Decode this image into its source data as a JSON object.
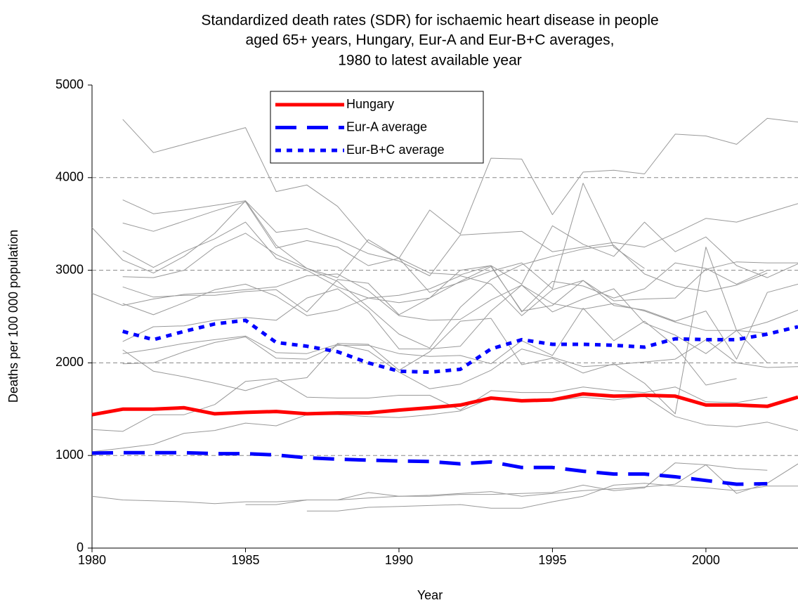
{
  "chart_data": {
    "type": "line",
    "title": [
      "Standardized death rates (SDR) for  ischaemic heart disease in people",
      "aged 65+ years, Hungary, Eur-A and Eur-B+C averages,",
      "1980 to latest available year"
    ],
    "x_label": "Year",
    "y_label": "Deaths per 100 000 population",
    "x": [
      1980,
      1981,
      1982,
      1983,
      1984,
      1985,
      1986,
      1987,
      1988,
      1989,
      1990,
      1991,
      1992,
      1993,
      1994,
      1995,
      1996,
      1997,
      1998,
      1999,
      2000,
      2001,
      2002,
      2003
    ],
    "xlim": [
      1980,
      2003
    ],
    "xticks": [
      1980,
      1985,
      1990,
      1995,
      2000
    ],
    "ylim": [
      0,
      5000
    ],
    "yticks": [
      0,
      1000,
      2000,
      3000,
      4000,
      5000
    ],
    "grid": true,
    "legend": "top-left",
    "series": [
      {
        "color": "#999999",
        "line_style": "solid",
        "line_width": 1,
        "values": [
          null,
          4630,
          4270,
          4360,
          4450,
          4540,
          3850,
          3920,
          3690,
          3300,
          3130,
          3650,
          3390,
          4210,
          4200,
          3600,
          4060,
          4080,
          4040,
          4470,
          4450,
          4360,
          4640,
          4600
        ]
      },
      {
        "color": "#999999",
        "line_style": "solid",
        "line_width": 1,
        "values": [
          null,
          3760,
          3610,
          3650,
          3700,
          3750,
          3410,
          3450,
          3330,
          3180,
          3100,
          2940,
          3380,
          3400,
          3420,
          3200,
          3250,
          3300,
          3250,
          3400,
          3560,
          3520,
          3620,
          3720
        ]
      },
      {
        "color": "#999999",
        "line_style": "solid",
        "line_width": 1,
        "values": [
          3460,
          3110,
          2970,
          3150,
          3400,
          3750,
          3270,
          3020,
          2920,
          3330,
          3130,
          2970,
          2950,
          3050,
          2850,
          3480,
          3280,
          3150,
          3520,
          3200,
          3360,
          3050,
          2920,
          3070
        ]
      },
      {
        "color": "#999999",
        "line_style": "solid",
        "line_width": 1,
        "values": [
          null,
          3510,
          3420,
          3530,
          3640,
          3740,
          3240,
          3320,
          3250,
          3050,
          3130,
          2760,
          2870,
          2990,
          3080,
          2800,
          3940,
          3250,
          3020,
          null,
          null,
          null,
          null,
          null
        ]
      },
      {
        "color": "#999999",
        "line_style": "solid",
        "line_width": 1,
        "values": [
          null,
          3210,
          3030,
          3200,
          3340,
          3520,
          3130,
          3000,
          2820,
          2700,
          2650,
          2700,
          3000,
          3050,
          2550,
          2880,
          2830,
          2700,
          2800,
          3080,
          3020,
          2850,
          3000,
          null
        ]
      },
      {
        "color": "#999999",
        "line_style": "solid",
        "line_width": 1,
        "values": [
          2750,
          2620,
          2690,
          2740,
          2760,
          2790,
          2820,
          2940,
          2960,
          2780,
          2510,
          2460,
          2470,
          2680,
          2840,
          2640,
          2580,
          2640,
          2560,
          2440,
          2350,
          2350,
          2320,
          null
        ]
      },
      {
        "color": "#999999",
        "line_style": "solid",
        "line_width": 1,
        "values": [
          null,
          2930,
          2920,
          3000,
          3250,
          3400,
          3170,
          3020,
          2880,
          2600,
          2310,
          2160,
          2600,
          2900,
          3060,
          3150,
          3230,
          3270,
          2960,
          2830,
          2770,
          2840,
          2970,
          null
        ]
      },
      {
        "color": "#999999",
        "line_style": "solid",
        "line_width": 1,
        "values": [
          null,
          2640,
          2520,
          2650,
          2790,
          2850,
          2720,
          2510,
          2570,
          2700,
          2730,
          2800,
          2940,
          2850,
          2510,
          2790,
          2890,
          2670,
          2690,
          2700,
          3010,
          3090,
          3080,
          3080
        ]
      },
      {
        "color": "#999999",
        "line_style": "solid",
        "line_width": 1,
        "values": [
          null,
          2820,
          2710,
          2730,
          2730,
          2770,
          2790,
          2550,
          2900,
          2860,
          2520,
          2700,
          2880,
          3040,
          2560,
          2620,
          2890,
          2620,
          2570,
          2450,
          2560,
          2040,
          2760,
          2850
        ]
      },
      {
        "color": "#999999",
        "line_style": "solid",
        "line_width": 1,
        "values": [
          null,
          2230,
          2390,
          2400,
          2460,
          2490,
          2460,
          2700,
          2800,
          2560,
          2150,
          2150,
          2180,
          2560,
          2840,
          2550,
          2690,
          2800,
          2430,
          2300,
          2100,
          2350,
          2440,
          2570
        ]
      },
      {
        "color": "#999999",
        "line_style": "solid",
        "line_width": 1,
        "values": [
          null,
          2100,
          2150,
          2210,
          2250,
          2290,
          2110,
          2100,
          2200,
          2130,
          1900,
          1720,
          1770,
          1920,
          2150,
          2060,
          1960,
          1980,
          2010,
          2040,
          2250,
          2000,
          1950,
          1960
        ]
      },
      {
        "color": "#999999",
        "line_style": "solid",
        "line_width": 1,
        "values": [
          null,
          2140,
          1910,
          1850,
          1780,
          1700,
          1800,
          1840,
          2210,
          2200,
          1920,
          2120,
          2450,
          2480,
          1980,
          2050,
          1890,
          1990,
          1780,
          1450,
          3250,
          2350,
          2000,
          null
        ]
      },
      {
        "color": "#999999",
        "line_style": "solid",
        "line_width": 1,
        "values": [
          null,
          1990,
          2000,
          2120,
          2220,
          2280,
          2050,
          2040,
          2190,
          2190,
          2100,
          2070,
          2080,
          1990,
          2240,
          2080,
          2590,
          2240,
          2450,
          2180,
          1760,
          1830,
          null,
          null
        ]
      },
      {
        "color": "#999999",
        "line_style": "solid",
        "line_width": 1,
        "values": [
          1280,
          1260,
          1440,
          1440,
          1550,
          1800,
          1830,
          1630,
          1620,
          1620,
          1650,
          1650,
          1490,
          1700,
          1680,
          1680,
          1740,
          1700,
          1680,
          1740,
          1580,
          1570,
          1630,
          null
        ]
      },
      {
        "color": "#999999",
        "line_style": "solid",
        "line_width": 1,
        "values": [
          1040,
          1080,
          1120,
          1240,
          1270,
          1350,
          1320,
          1440,
          1440,
          1420,
          1410,
          1440,
          1480,
          1620,
          1590,
          1590,
          1630,
          1600,
          1640,
          1420,
          1330,
          1310,
          1360,
          1270
        ]
      },
      {
        "color": "#999999",
        "line_style": "solid",
        "line_width": 1,
        "values": [
          560,
          520,
          510,
          500,
          480,
          500,
          500,
          520,
          520,
          540,
          560,
          570,
          590,
          610,
          560,
          590,
          620,
          640,
          660,
          690,
          900,
          590,
          700,
          910
        ]
      },
      {
        "color": "#999999",
        "line_style": "solid",
        "line_width": 1,
        "values": [
          null,
          null,
          null,
          null,
          null,
          470,
          470,
          520,
          520,
          600,
          560,
          560,
          580,
          580,
          590,
          600,
          680,
          620,
          650,
          920,
          900,
          860,
          840,
          null
        ]
      },
      {
        "color": "#999999",
        "line_style": "solid",
        "line_width": 1,
        "values": [
          null,
          null,
          null,
          null,
          null,
          null,
          null,
          400,
          400,
          440,
          450,
          460,
          470,
          430,
          430,
          500,
          560,
          680,
          700,
          670,
          650,
          620,
          670,
          670
        ]
      },
      {
        "name": "Hungary",
        "color": "#ff0000",
        "line_style": "solid",
        "line_width": 5,
        "values": [
          1440,
          1500,
          1500,
          1515,
          1450,
          1465,
          1475,
          1450,
          1460,
          1460,
          1490,
          1515,
          1545,
          1620,
          1590,
          1600,
          1665,
          1640,
          1650,
          1640,
          1545,
          1545,
          1530,
          1630
        ]
      },
      {
        "name": "Eur-A average",
        "color": "#0000ff",
        "line_style": "dashed",
        "line_width": 5,
        "values": [
          1025,
          1030,
          1030,
          1030,
          1020,
          1020,
          1005,
          975,
          960,
          950,
          940,
          935,
          910,
          930,
          870,
          870,
          830,
          800,
          800,
          770,
          730,
          690,
          695,
          null
        ]
      },
      {
        "name": "Eur-B+C average",
        "color": "#0000ff",
        "line_style": "dotted",
        "line_width": 5,
        "values": [
          null,
          2340,
          2250,
          2340,
          2420,
          2460,
          2220,
          2180,
          2120,
          2000,
          1910,
          1900,
          1930,
          2150,
          2250,
          2200,
          2200,
          2190,
          2170,
          2260,
          2250,
          2250,
          2310,
          2390
        ]
      }
    ]
  }
}
